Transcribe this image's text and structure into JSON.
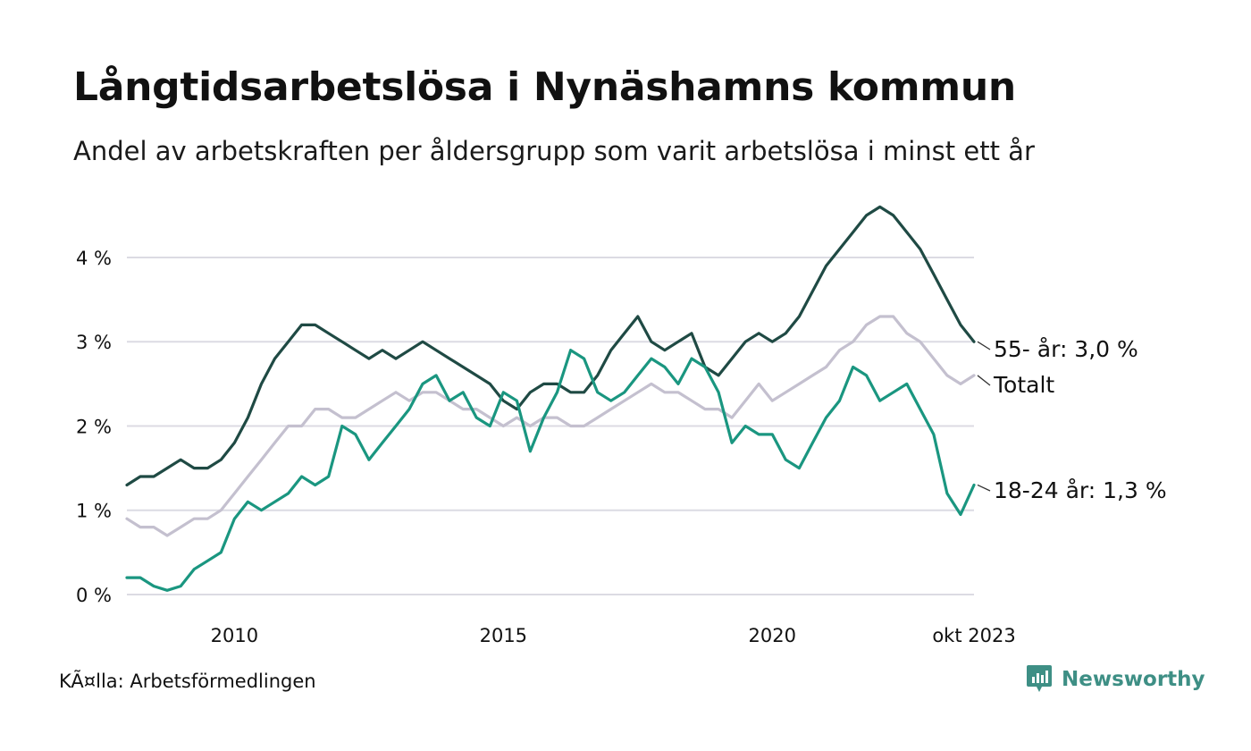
{
  "title": "Långtidsarbetslösa i Nynäshamns kommun",
  "subtitle": "Andel av arbetskraften per åldersgrupp som varit arbetslösa i minst ett år",
  "source": "KÃ¤lla: Arbetsförmedlingen",
  "brand": "Newsworthy",
  "colors": {
    "series_55": "#1f4a44",
    "series_total": "#c4c0cf",
    "series_18_24": "#1a9680",
    "grid": "#dcdbe3",
    "brand": "#3e8f85"
  },
  "chart_data": {
    "type": "line",
    "title": "Långtidsarbetslösa i Nynäshamns kommun",
    "ylim": [
      0,
      4.7
    ],
    "yticks": [
      0,
      1,
      2,
      3,
      4
    ],
    "ytick_labels": [
      "0 %",
      "1 %",
      "2 %",
      "3 %",
      "4 %"
    ],
    "xlim": [
      2008.0,
      2023.75
    ],
    "xticks": [
      2010,
      2015,
      2020,
      2023.75
    ],
    "xtick_labels": [
      "2010",
      "2015",
      "2020",
      "okt 2023"
    ],
    "grid": true,
    "series": [
      {
        "name": "Totalt",
        "label": "Totalt",
        "color_key": "series_total",
        "points": [
          [
            2008.0,
            0.9
          ],
          [
            2008.25,
            0.8
          ],
          [
            2008.5,
            0.8
          ],
          [
            2008.75,
            0.7
          ],
          [
            2009.0,
            0.8
          ],
          [
            2009.25,
            0.9
          ],
          [
            2009.5,
            0.9
          ],
          [
            2009.75,
            1.0
          ],
          [
            2010.0,
            1.2
          ],
          [
            2010.25,
            1.4
          ],
          [
            2010.5,
            1.6
          ],
          [
            2010.75,
            1.8
          ],
          [
            2011.0,
            2.0
          ],
          [
            2011.25,
            2.0
          ],
          [
            2011.5,
            2.2
          ],
          [
            2011.75,
            2.2
          ],
          [
            2012.0,
            2.1
          ],
          [
            2012.25,
            2.1
          ],
          [
            2012.5,
            2.2
          ],
          [
            2012.75,
            2.3
          ],
          [
            2013.0,
            2.4
          ],
          [
            2013.25,
            2.3
          ],
          [
            2013.5,
            2.4
          ],
          [
            2013.75,
            2.4
          ],
          [
            2014.0,
            2.3
          ],
          [
            2014.25,
            2.2
          ],
          [
            2014.5,
            2.2
          ],
          [
            2014.75,
            2.1
          ],
          [
            2015.0,
            2.0
          ],
          [
            2015.25,
            2.1
          ],
          [
            2015.5,
            2.0
          ],
          [
            2015.75,
            2.1
          ],
          [
            2016.0,
            2.1
          ],
          [
            2016.25,
            2.0
          ],
          [
            2016.5,
            2.0
          ],
          [
            2016.75,
            2.1
          ],
          [
            2017.0,
            2.2
          ],
          [
            2017.25,
            2.3
          ],
          [
            2017.5,
            2.4
          ],
          [
            2017.75,
            2.5
          ],
          [
            2018.0,
            2.4
          ],
          [
            2018.25,
            2.4
          ],
          [
            2018.5,
            2.3
          ],
          [
            2018.75,
            2.2
          ],
          [
            2019.0,
            2.2
          ],
          [
            2019.25,
            2.1
          ],
          [
            2019.5,
            2.3
          ],
          [
            2019.75,
            2.5
          ],
          [
            2020.0,
            2.3
          ],
          [
            2020.25,
            2.4
          ],
          [
            2020.5,
            2.5
          ],
          [
            2020.75,
            2.6
          ],
          [
            2021.0,
            2.7
          ],
          [
            2021.25,
            2.9
          ],
          [
            2021.5,
            3.0
          ],
          [
            2021.75,
            3.2
          ],
          [
            2022.0,
            3.3
          ],
          [
            2022.25,
            3.3
          ],
          [
            2022.5,
            3.1
          ],
          [
            2022.75,
            3.0
          ],
          [
            2023.0,
            2.8
          ],
          [
            2023.25,
            2.6
          ],
          [
            2023.5,
            2.5
          ],
          [
            2023.75,
            2.6
          ]
        ]
      },
      {
        "name": "55- år",
        "label": "55- år: 3,0 %",
        "color_key": "series_55",
        "points": [
          [
            2008.0,
            1.3
          ],
          [
            2008.25,
            1.4
          ],
          [
            2008.5,
            1.4
          ],
          [
            2008.75,
            1.5
          ],
          [
            2009.0,
            1.6
          ],
          [
            2009.25,
            1.5
          ],
          [
            2009.5,
            1.5
          ],
          [
            2009.75,
            1.6
          ],
          [
            2010.0,
            1.8
          ],
          [
            2010.25,
            2.1
          ],
          [
            2010.5,
            2.5
          ],
          [
            2010.75,
            2.8
          ],
          [
            2011.0,
            3.0
          ],
          [
            2011.25,
            3.2
          ],
          [
            2011.5,
            3.2
          ],
          [
            2011.75,
            3.1
          ],
          [
            2012.0,
            3.0
          ],
          [
            2012.25,
            2.9
          ],
          [
            2012.5,
            2.8
          ],
          [
            2012.75,
            2.9
          ],
          [
            2013.0,
            2.8
          ],
          [
            2013.25,
            2.9
          ],
          [
            2013.5,
            3.0
          ],
          [
            2013.75,
            2.9
          ],
          [
            2014.0,
            2.8
          ],
          [
            2014.25,
            2.7
          ],
          [
            2014.5,
            2.6
          ],
          [
            2014.75,
            2.5
          ],
          [
            2015.0,
            2.3
          ],
          [
            2015.25,
            2.2
          ],
          [
            2015.5,
            2.4
          ],
          [
            2015.75,
            2.5
          ],
          [
            2016.0,
            2.5
          ],
          [
            2016.25,
            2.4
          ],
          [
            2016.5,
            2.4
          ],
          [
            2016.75,
            2.6
          ],
          [
            2017.0,
            2.9
          ],
          [
            2017.25,
            3.1
          ],
          [
            2017.5,
            3.3
          ],
          [
            2017.75,
            3.0
          ],
          [
            2018.0,
            2.9
          ],
          [
            2018.25,
            3.0
          ],
          [
            2018.5,
            3.1
          ],
          [
            2018.75,
            2.7
          ],
          [
            2019.0,
            2.6
          ],
          [
            2019.25,
            2.8
          ],
          [
            2019.5,
            3.0
          ],
          [
            2019.75,
            3.1
          ],
          [
            2020.0,
            3.0
          ],
          [
            2020.25,
            3.1
          ],
          [
            2020.5,
            3.3
          ],
          [
            2020.75,
            3.6
          ],
          [
            2021.0,
            3.9
          ],
          [
            2021.25,
            4.1
          ],
          [
            2021.5,
            4.3
          ],
          [
            2021.75,
            4.5
          ],
          [
            2022.0,
            4.6
          ],
          [
            2022.25,
            4.5
          ],
          [
            2022.5,
            4.3
          ],
          [
            2022.75,
            4.1
          ],
          [
            2023.0,
            3.8
          ],
          [
            2023.25,
            3.5
          ],
          [
            2023.5,
            3.2
          ],
          [
            2023.75,
            3.0
          ]
        ]
      },
      {
        "name": "18-24 år",
        "label": "18-24 år: 1,3 %",
        "color_key": "series_18_24",
        "points": [
          [
            2008.0,
            0.2
          ],
          [
            2008.25,
            0.2
          ],
          [
            2008.5,
            0.1
          ],
          [
            2008.75,
            0.05
          ],
          [
            2009.0,
            0.1
          ],
          [
            2009.25,
            0.3
          ],
          [
            2009.5,
            0.4
          ],
          [
            2009.75,
            0.5
          ],
          [
            2010.0,
            0.9
          ],
          [
            2010.25,
            1.1
          ],
          [
            2010.5,
            1.0
          ],
          [
            2010.75,
            1.1
          ],
          [
            2011.0,
            1.2
          ],
          [
            2011.25,
            1.4
          ],
          [
            2011.5,
            1.3
          ],
          [
            2011.75,
            1.4
          ],
          [
            2012.0,
            2.0
          ],
          [
            2012.25,
            1.9
          ],
          [
            2012.5,
            1.6
          ],
          [
            2012.75,
            1.8
          ],
          [
            2013.0,
            2.0
          ],
          [
            2013.25,
            2.2
          ],
          [
            2013.5,
            2.5
          ],
          [
            2013.75,
            2.6
          ],
          [
            2014.0,
            2.3
          ],
          [
            2014.25,
            2.4
          ],
          [
            2014.5,
            2.1
          ],
          [
            2014.75,
            2.0
          ],
          [
            2015.0,
            2.4
          ],
          [
            2015.25,
            2.3
          ],
          [
            2015.5,
            1.7
          ],
          [
            2015.75,
            2.1
          ],
          [
            2016.0,
            2.4
          ],
          [
            2016.25,
            2.9
          ],
          [
            2016.5,
            2.8
          ],
          [
            2016.75,
            2.4
          ],
          [
            2017.0,
            2.3
          ],
          [
            2017.25,
            2.4
          ],
          [
            2017.5,
            2.6
          ],
          [
            2017.75,
            2.8
          ],
          [
            2018.0,
            2.7
          ],
          [
            2018.25,
            2.5
          ],
          [
            2018.5,
            2.8
          ],
          [
            2018.75,
            2.7
          ],
          [
            2019.0,
            2.4
          ],
          [
            2019.25,
            1.8
          ],
          [
            2019.5,
            2.0
          ],
          [
            2019.75,
            1.9
          ],
          [
            2020.0,
            1.9
          ],
          [
            2020.25,
            1.6
          ],
          [
            2020.5,
            1.5
          ],
          [
            2020.75,
            1.8
          ],
          [
            2021.0,
            2.1
          ],
          [
            2021.25,
            2.3
          ],
          [
            2021.5,
            2.7
          ],
          [
            2021.75,
            2.6
          ],
          [
            2022.0,
            2.3
          ],
          [
            2022.25,
            2.4
          ],
          [
            2022.5,
            2.5
          ],
          [
            2022.75,
            2.2
          ],
          [
            2023.0,
            1.9
          ],
          [
            2023.25,
            1.2
          ],
          [
            2023.5,
            0.95
          ],
          [
            2023.75,
            1.3
          ]
        ]
      }
    ]
  }
}
